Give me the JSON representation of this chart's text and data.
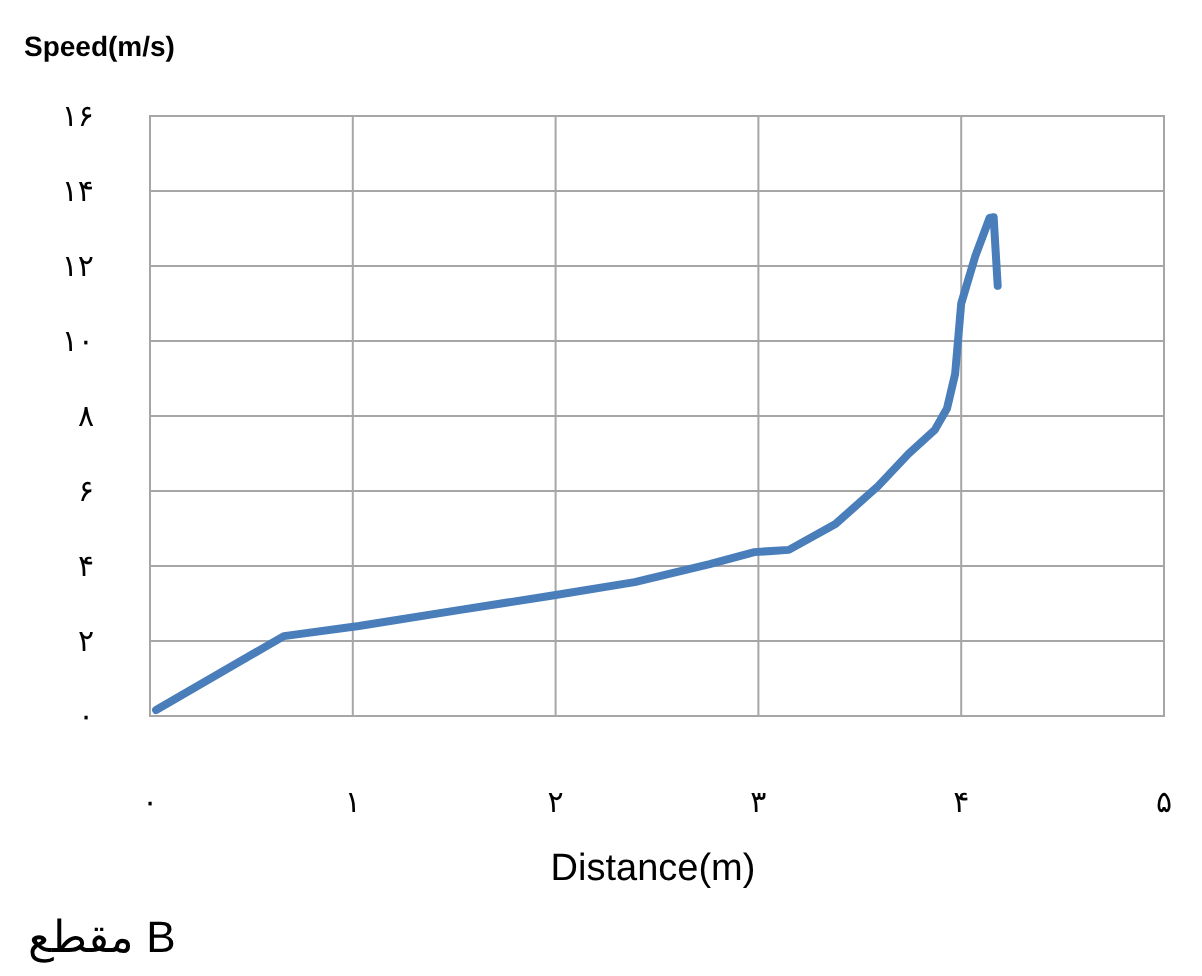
{
  "chart_data": {
    "type": "line",
    "ylabel": "Speed(m/s)",
    "xlabel": "Distance(m)",
    "annotations": [
      "مقطع B"
    ],
    "xlim": [
      0,
      5
    ],
    "ylim": [
      0,
      16
    ],
    "xticks": [
      {
        "value": 0,
        "label": "۰"
      },
      {
        "value": 1,
        "label": "۱"
      },
      {
        "value": 2,
        "label": "۲"
      },
      {
        "value": 3,
        "label": "۳"
      },
      {
        "value": 4,
        "label": "۴"
      },
      {
        "value": 5,
        "label": "۵"
      }
    ],
    "yticks": [
      {
        "value": 0,
        "label": "۰"
      },
      {
        "value": 2,
        "label": "۲"
      },
      {
        "value": 4,
        "label": "۴"
      },
      {
        "value": 6,
        "label": "۶"
      },
      {
        "value": 8,
        "label": "۸"
      },
      {
        "value": 10,
        "label": "۱۰"
      },
      {
        "value": 12,
        "label": "۱۲"
      },
      {
        "value": 14,
        "label": "۱۴"
      },
      {
        "value": 16,
        "label": "۱۶"
      }
    ],
    "grid": true,
    "marker": "none",
    "line_style": "solid",
    "series": [
      {
        "color": "#4a7ebb",
        "x": [
          0.03,
          0.66,
          1.03,
          1.53,
          1.97,
          2.39,
          2.76,
          2.98,
          3.15,
          3.38,
          3.59,
          3.74,
          3.87,
          3.93,
          3.97,
          4.0,
          4.07,
          4.14,
          4.16,
          4.18
        ],
        "values": [
          0.16,
          2.13,
          2.4,
          2.83,
          3.2,
          3.57,
          4.05,
          4.37,
          4.43,
          5.12,
          6.13,
          6.99,
          7.63,
          8.2,
          9.12,
          11.0,
          12.27,
          13.28,
          13.3,
          11.47
        ]
      }
    ]
  }
}
